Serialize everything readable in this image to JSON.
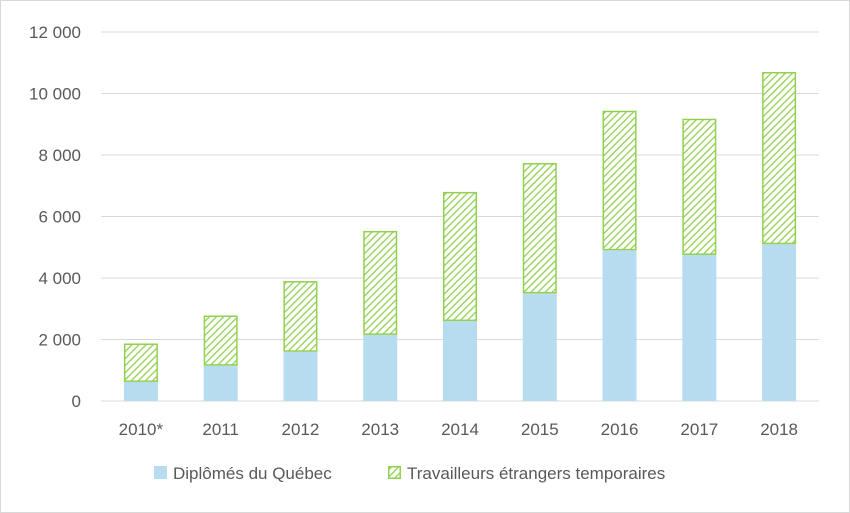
{
  "chart_data": {
    "type": "bar",
    "stacked": true,
    "categories": [
      "2010*",
      "2011",
      "2012",
      "2013",
      "2014",
      "2015",
      "2016",
      "2017",
      "2018"
    ],
    "series": [
      {
        "name": "Diplômés du Québec",
        "color": "#b8dcef",
        "pattern": "solid",
        "values": [
          620,
          1150,
          1600,
          2150,
          2600,
          3500,
          4900,
          4750,
          5100
        ]
      },
      {
        "name": "Travailleurs étrangers temporaires",
        "color": "#92d050",
        "pattern": "diagonal-hatch",
        "values": [
          1250,
          1630,
          2300,
          3380,
          4200,
          4240,
          4540,
          4430,
          5600
        ]
      }
    ],
    "ylim": [
      0,
      12000
    ],
    "yticks": [
      {
        "value": 0,
        "label": "0"
      },
      {
        "value": 2000,
        "label": "2 000"
      },
      {
        "value": 4000,
        "label": "4 000"
      },
      {
        "value": 6000,
        "label": "6 000"
      },
      {
        "value": 8000,
        "label": "8 000"
      },
      {
        "value": 10000,
        "label": "10 000"
      },
      {
        "value": 12000,
        "label": "12 000"
      }
    ],
    "grid": true,
    "legend_position": "bottom"
  }
}
